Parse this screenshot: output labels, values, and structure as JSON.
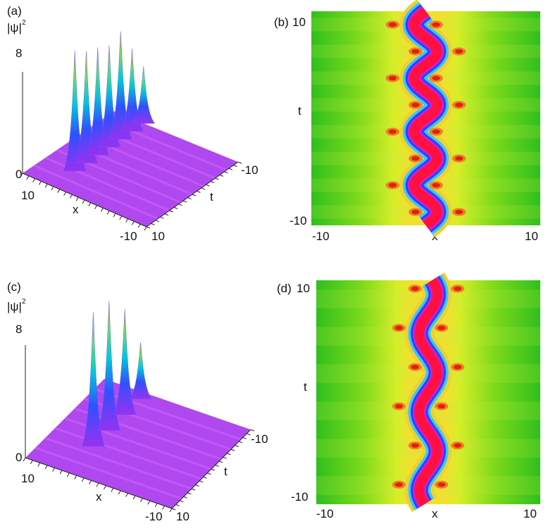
{
  "figure": {
    "panels": [
      {
        "id": "a",
        "label": "(a)",
        "type": "surface3d",
        "zlabel": "|ψ|",
        "zlabel_sup": "2",
        "ztick_top": "8",
        "ztick_bottom": "0",
        "xlabel": "x",
        "xtick_near": "10",
        "xtick_far": "-10",
        "tlabel": "t",
        "ttick_near": "10",
        "ttick_far": "-10"
      },
      {
        "id": "b",
        "label": "(b)",
        "type": "density",
        "ylabel": "t",
        "ytick_top": "10",
        "ytick_bottom": "-10",
        "xlabel": "x",
        "xtick_left": "-10",
        "xtick_right": "10"
      },
      {
        "id": "c",
        "label": "(c)",
        "type": "surface3d",
        "zlabel": "|ψ|",
        "zlabel_sup": "2",
        "ztick_top": "8",
        "ztick_bottom": "0",
        "xlabel": "x",
        "xtick_near": "10",
        "xtick_far": "-10",
        "tlabel": "t",
        "ttick_near": "10",
        "ttick_far": "-10"
      },
      {
        "id": "d",
        "label": "(d)",
        "type": "density",
        "ylabel": "t",
        "ytick_top": "10",
        "ytick_bottom": "-10",
        "xlabel": "x",
        "xtick_left": "-10",
        "xtick_right": "10"
      }
    ]
  },
  "chart_data": [
    {
      "type": "heatmap",
      "panel": "a",
      "view": "3d-surface",
      "xlim": [
        -10,
        10
      ],
      "ylim": [
        -10,
        10
      ],
      "zlim": [
        0,
        8
      ],
      "xlabel": "x",
      "ylabel": "t",
      "zlabel": "|ψ|²",
      "peaks": [
        {
          "t": -7.5,
          "height": 4.5
        },
        {
          "t": -5.0,
          "height": 6.5
        },
        {
          "t": -2.5,
          "height": 8.5
        },
        {
          "t": 0.0,
          "height": 8.0
        },
        {
          "t": 2.5,
          "height": 8.5
        },
        {
          "t": 5.0,
          "height": 8.8
        },
        {
          "t": 7.5,
          "height": 9.5
        }
      ],
      "background_level": 1.0,
      "colorscale": [
        "#a020f0",
        "#3050ff",
        "#00d0d0",
        "#60e060",
        "#ffa020"
      ]
    },
    {
      "type": "heatmap",
      "panel": "b",
      "view": "density",
      "xlim": [
        -10,
        10
      ],
      "ylim": [
        -10,
        10
      ],
      "xlabel": "x",
      "ylabel": "t",
      "ridge_center_x": 0,
      "ridge_amplitude_x": 1.0,
      "ridge_period_t": 5.0,
      "colorscale": [
        "#30c020",
        "#d0f030",
        "#f0d030",
        "#30c0ff",
        "#3040ff",
        "#d020d0",
        "#ff1040"
      ]
    },
    {
      "type": "heatmap",
      "panel": "c",
      "view": "3d-surface",
      "xlim": [
        -10,
        10
      ],
      "ylim": [
        -10,
        10
      ],
      "zlim": [
        0,
        8
      ],
      "xlabel": "x",
      "ylabel": "t",
      "zlabel": "|ψ|²",
      "peaks": [
        {
          "t": -6.0,
          "height": 4.0
        },
        {
          "t": -2.0,
          "height": 7.5
        },
        {
          "t": 2.0,
          "height": 9.2
        },
        {
          "t": 6.0,
          "height": 9.5
        }
      ],
      "background_level": 1.0,
      "colorscale": [
        "#a020f0",
        "#3050ff",
        "#00d0d0",
        "#60e060",
        "#ffa020"
      ]
    },
    {
      "type": "heatmap",
      "panel": "d",
      "view": "density",
      "xlim": [
        -10,
        10
      ],
      "ylim": [
        -10,
        10
      ],
      "xlabel": "x",
      "ylabel": "t",
      "ridge_center_x": 0,
      "ridge_amplitude_x": 0.8,
      "ridge_period_t": 7.0,
      "colorscale": [
        "#30c020",
        "#d0f030",
        "#f0d030",
        "#30c0ff",
        "#3040ff",
        "#d020d0",
        "#ff1040"
      ]
    }
  ]
}
